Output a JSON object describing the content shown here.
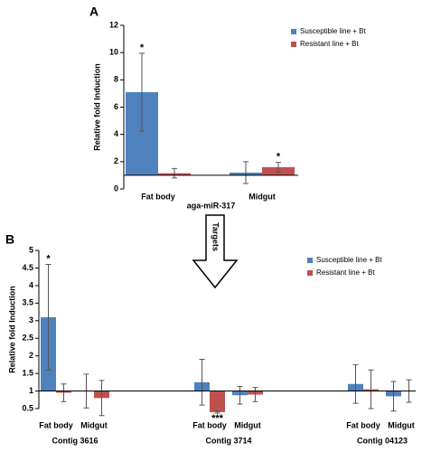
{
  "arrow_label": "Targets",
  "chart_data": [
    {
      "type": "bar",
      "panel_label": "A",
      "ylabel": "Relative fold Induction",
      "xlabel": "aga-miR-317",
      "categories": [
        "Fat body",
        "Midgut"
      ],
      "series": [
        {
          "name": "Susceptible line + Bt",
          "color": "#4f81bd",
          "values": [
            7.1,
            1.2
          ],
          "errors": [
            2.85,
            0.8
          ]
        },
        {
          "name": "Resistant line + Bt",
          "color": "#c0504d",
          "values": [
            1.15,
            1.6
          ],
          "errors": [
            0.35,
            0.35
          ]
        }
      ],
      "annotations": [
        {
          "text": "*",
          "series": 0,
          "index": 0
        },
        {
          "text": "*",
          "series": 1,
          "index": 1
        }
      ],
      "bar_base": 1,
      "ylim": [
        0,
        12
      ],
      "yticks": [
        0,
        2,
        4,
        6,
        8,
        10,
        12
      ],
      "legend": "upper right"
    },
    {
      "type": "bar",
      "panel_label": "B",
      "ylabel": "Relative fold Induction",
      "categories": [
        "Fat body",
        "Midgut",
        "Fat body",
        "Midgut",
        "Fat body",
        "Midgut"
      ],
      "groups": [
        "Contig 3616",
        "Contig 3714",
        "Contig 04123"
      ],
      "series": [
        {
          "name": "Susceptible line + Bt",
          "color": "#4f81bd",
          "values": [
            3.1,
            1.0,
            1.25,
            0.88,
            1.2,
            0.85
          ],
          "errors": [
            1.5,
            0.48,
            0.65,
            0.25,
            0.55,
            0.42
          ]
        },
        {
          "name": "Resistant line + Bt",
          "color": "#c0504d",
          "values": [
            0.95,
            0.8,
            0.4,
            0.9,
            1.05,
            1.0
          ],
          "errors": [
            0.25,
            0.5,
            0.03,
            0.2,
            0.55,
            0.32
          ]
        }
      ],
      "annotations": [
        {
          "text": "*",
          "series": 0,
          "index": 0
        },
        {
          "text": "***",
          "series": 1,
          "index": 2
        }
      ],
      "bar_base": 1,
      "ylim": [
        0.5,
        5
      ],
      "yticks": [
        0.5,
        1,
        1.5,
        2,
        2.5,
        3,
        3.5,
        4,
        4.5,
        5
      ],
      "legend": "upper right"
    }
  ]
}
